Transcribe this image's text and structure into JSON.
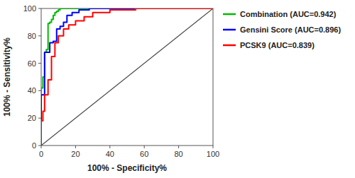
{
  "chart_data": {
    "type": "line",
    "xlabel": "100% - Specificity%",
    "ylabel": "100% - Sensitivity%",
    "xlim": [
      0,
      100
    ],
    "ylim": [
      0,
      100
    ],
    "xticks": [
      0,
      20,
      40,
      60,
      80,
      100
    ],
    "yticks": [
      0,
      20,
      40,
      60,
      80,
      100
    ],
    "grid": false,
    "legend": "right",
    "series": [
      {
        "name": "Combination (AUC=0.942)",
        "color": "#00BB00",
        "x": [
          0,
          0,
          1,
          1,
          2,
          2,
          3,
          3,
          4,
          4,
          5,
          5,
          6,
          6,
          7,
          7,
          8,
          8,
          9,
          9,
          10,
          10,
          11,
          11,
          13,
          13,
          15,
          15,
          20,
          20,
          30,
          30,
          100
        ],
        "values": [
          0,
          42,
          42,
          50,
          50,
          68,
          68,
          70,
          70,
          89,
          89,
          90,
          90,
          92,
          92,
          95,
          95,
          97,
          97,
          98,
          98,
          99,
          99,
          100,
          100,
          100,
          100,
          100,
          100,
          100,
          100,
          100,
          100
        ]
      },
      {
        "name": "Gensini Score (AUC=0.896)",
        "color": "#0000FF",
        "x": [
          0,
          0,
          2,
          2,
          5,
          5,
          7,
          7,
          9,
          9,
          11,
          11,
          13,
          13,
          15,
          15,
          18,
          18,
          22,
          22,
          28,
          28,
          40,
          40,
          100
        ],
        "values": [
          0,
          37,
          37,
          68,
          68,
          75,
          75,
          76,
          76,
          85,
          85,
          87,
          87,
          90,
          90,
          95,
          95,
          97,
          97,
          99,
          99,
          100,
          100,
          100,
          100
        ]
      },
      {
        "name": "PCSK9 (AUC=0.839)",
        "color": "#FF0000",
        "x": [
          0,
          0,
          1,
          1,
          2,
          2,
          4,
          4,
          6,
          6,
          8,
          8,
          10,
          10,
          13,
          13,
          16,
          16,
          20,
          20,
          25,
          25,
          30,
          30,
          40,
          40,
          55,
          55,
          100
        ],
        "values": [
          0,
          18,
          18,
          25,
          25,
          37,
          37,
          48,
          48,
          65,
          65,
          75,
          75,
          80,
          80,
          85,
          85,
          88,
          88,
          91,
          91,
          94,
          94,
          97,
          97,
          99,
          99,
          100,
          100
        ]
      }
    ]
  }
}
